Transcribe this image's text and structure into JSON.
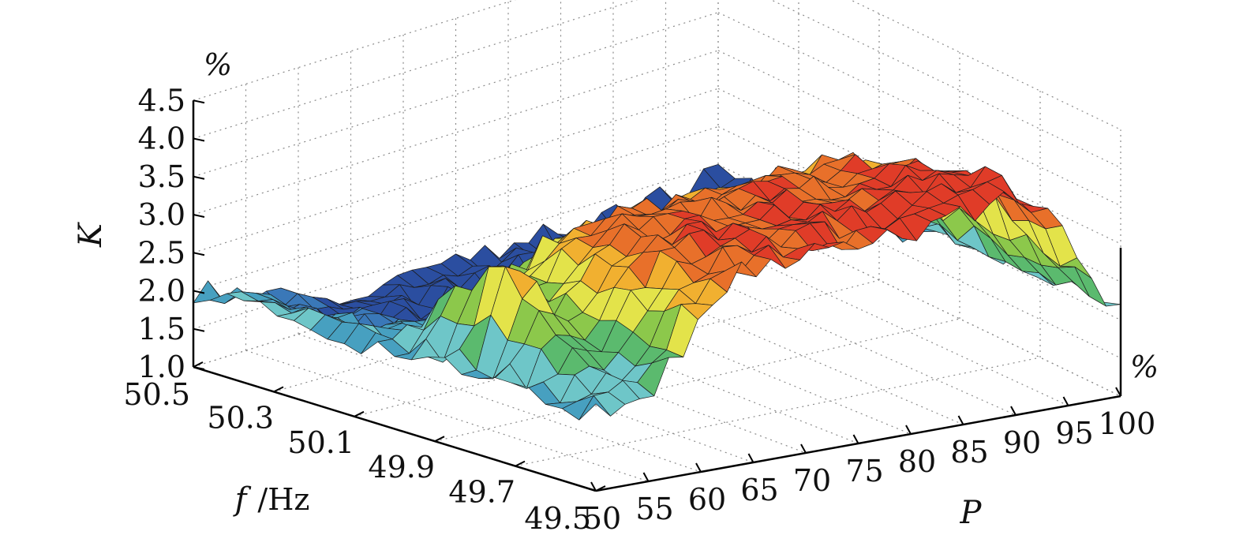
{
  "chart_data": {
    "type": "surface3d",
    "title": "",
    "zlabel": "K",
    "z_unit": "%",
    "xlabel": "P",
    "x_unit": "%",
    "ylabel_symbol": "f",
    "ylabel_unit": "/Hz",
    "x_ticks": [
      "50",
      "55",
      "60",
      "65",
      "70",
      "75",
      "80",
      "85",
      "90",
      "95",
      "100"
    ],
    "y_ticks": [
      "50.5",
      "50.3",
      "50.1",
      "49.9",
      "49.7",
      "49.5"
    ],
    "z_ticks": [
      "1.0",
      "1.5",
      "2.0",
      "2.5",
      "3.0",
      "3.5",
      "4.0",
      "4.5"
    ],
    "xlim": [
      50,
      100
    ],
    "ylim": [
      49.5,
      50.5
    ],
    "zlim": [
      1.0,
      4.5
    ],
    "grid": true,
    "colormap": [
      "#2b4ea0",
      "#3a78b8",
      "#47a0c0",
      "#6ec6c8",
      "#5bba6e",
      "#8cc84b",
      "#e3e34a",
      "#f1b030",
      "#e8702a",
      "#e03c28"
    ],
    "approx_levels": {
      "P_at_50_all_f": 2.0,
      "low_P_peak_near_f_49_9": 3.1,
      "plateau_f_below_50_0_P_60_to_95": 3.6,
      "max_near_P_90_f_49_6": 4.0,
      "f_above_50_2_most_P": 1.3,
      "P_100_all_f": 1.8
    }
  }
}
